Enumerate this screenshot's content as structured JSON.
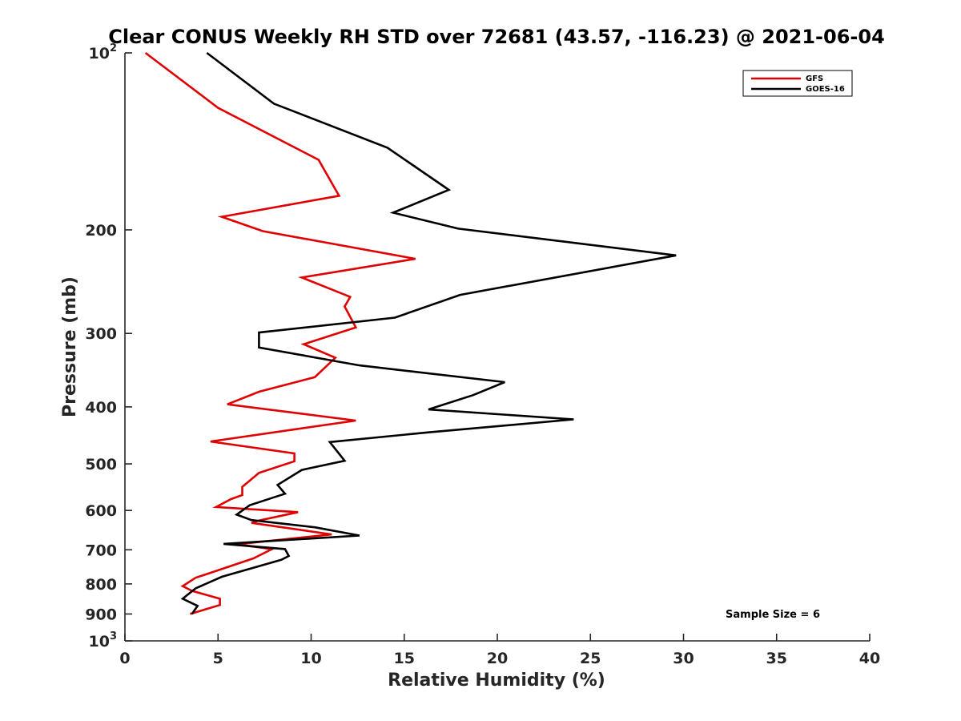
{
  "chart_data": {
    "type": "line",
    "title": "Clear CONUS Weekly RH STD over 72681 (43.57, -116.23) @ 2021-06-04",
    "xlabel": "Relative Humidity (%)",
    "ylabel": "Pressure (mb)",
    "xlim": [
      0,
      40
    ],
    "ylim": [
      100,
      1000
    ],
    "y_scale": "log",
    "y_reversed": true,
    "x_ticks": [
      "0",
      "5",
      "10",
      "15",
      "20",
      "25",
      "30",
      "35",
      "40"
    ],
    "y_ticks": [
      {
        "value": 100,
        "label": "10",
        "sup": "2"
      },
      {
        "value": 200,
        "label": "200",
        "sup": ""
      },
      {
        "value": 300,
        "label": "300",
        "sup": ""
      },
      {
        "value": 400,
        "label": "400",
        "sup": ""
      },
      {
        "value": 500,
        "label": "500",
        "sup": ""
      },
      {
        "value": 600,
        "label": "600",
        "sup": ""
      },
      {
        "value": 700,
        "label": "700",
        "sup": ""
      },
      {
        "value": 800,
        "label": "800",
        "sup": ""
      },
      {
        "value": 900,
        "label": "900",
        "sup": ""
      },
      {
        "value": 1000,
        "label": "10",
        "sup": "3"
      }
    ],
    "legend_position": "top-right",
    "annotation": "Sample Size = 6",
    "series": [
      {
        "name": "GFS",
        "color": "#e00000",
        "points": [
          [
            1.1,
            100
          ],
          [
            5.0,
            124
          ],
          [
            10.4,
            152
          ],
          [
            11.5,
            175
          ],
          [
            5.2,
            190
          ],
          [
            7.4,
            201
          ],
          [
            15.6,
            224
          ],
          [
            9.5,
            241
          ],
          [
            12.1,
            260
          ],
          [
            11.8,
            270
          ],
          [
            12.4,
            293
          ],
          [
            9.6,
            313
          ],
          [
            11.3,
            330
          ],
          [
            10.2,
            356
          ],
          [
            7.2,
            377
          ],
          [
            5.5,
            396
          ],
          [
            12.4,
            422
          ],
          [
            4.6,
            458
          ],
          [
            9.1,
            480
          ],
          [
            9.1,
            495
          ],
          [
            7.2,
            518
          ],
          [
            6.3,
            547
          ],
          [
            6.3,
            565
          ],
          [
            5.7,
            574
          ],
          [
            4.9,
            592
          ],
          [
            9.3,
            604
          ],
          [
            7.2,
            624
          ],
          [
            6.8,
            630
          ],
          [
            11.1,
            659
          ],
          [
            6.0,
            685
          ],
          [
            7.9,
            698
          ],
          [
            6.9,
            724
          ],
          [
            3.8,
            781
          ],
          [
            3.1,
            807
          ],
          [
            3.6,
            822
          ],
          [
            5.1,
            848
          ],
          [
            5.1,
            869
          ],
          [
            3.5,
            900
          ]
        ]
      },
      {
        "name": "GOES-16",
        "color": "#000000",
        "points": [
          [
            4.4,
            100
          ],
          [
            8.0,
            122
          ],
          [
            14.1,
            145
          ],
          [
            17.4,
            171
          ],
          [
            14.4,
            187
          ],
          [
            17.9,
            199
          ],
          [
            29.6,
            221
          ],
          [
            18.0,
            258
          ],
          [
            14.5,
            282
          ],
          [
            7.2,
            299
          ],
          [
            7.2,
            317
          ],
          [
            12.6,
            340
          ],
          [
            20.4,
            363
          ],
          [
            18.7,
            382
          ],
          [
            16.3,
            404
          ],
          [
            24.1,
            420
          ],
          [
            16.3,
            442
          ],
          [
            11.0,
            459
          ],
          [
            11.8,
            494
          ],
          [
            9.5,
            512
          ],
          [
            8.2,
            543
          ],
          [
            8.6,
            562
          ],
          [
            6.7,
            588
          ],
          [
            6.0,
            610
          ],
          [
            6.8,
            623
          ],
          [
            10.2,
            641
          ],
          [
            12.6,
            662
          ],
          [
            5.3,
            684
          ],
          [
            8.6,
            698
          ],
          [
            8.8,
            717
          ],
          [
            8.4,
            728
          ],
          [
            5.2,
            778
          ],
          [
            3.8,
            814
          ],
          [
            3.1,
            848
          ],
          [
            3.9,
            872
          ],
          [
            3.6,
            900
          ]
        ]
      }
    ]
  }
}
